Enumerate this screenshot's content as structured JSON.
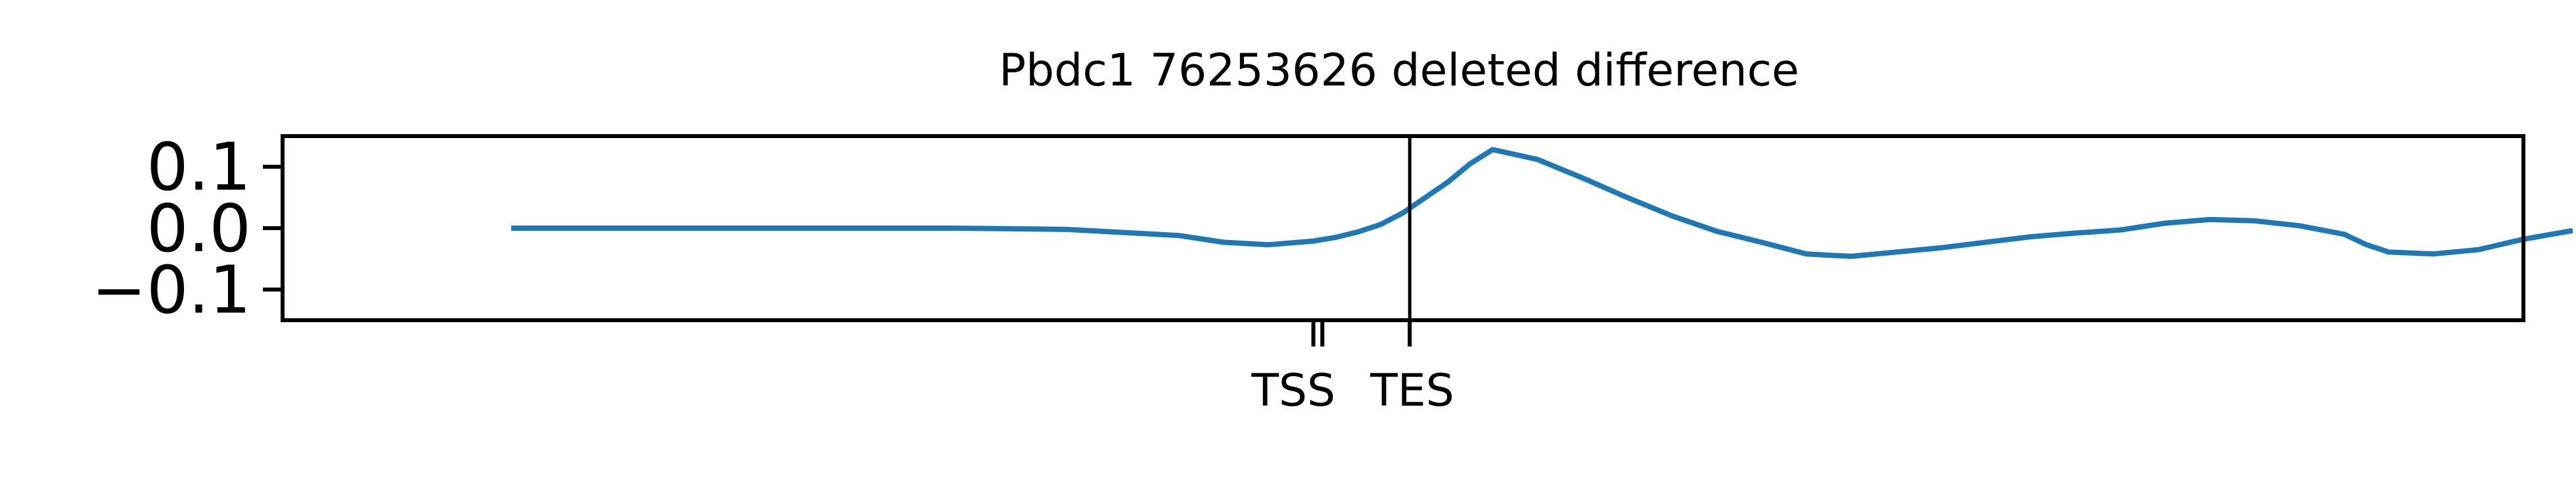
{
  "chart_data": {
    "type": "line",
    "title": "Pbdc1 76253626 deleted difference",
    "xlabel": "",
    "ylabel": "",
    "xlim": [
      0,
      1000
    ],
    "ylim": [
      -0.15,
      0.15
    ],
    "grid": false,
    "legend": "none",
    "yticks": [
      {
        "value": 0.1,
        "label": "0.1"
      },
      {
        "value": 0.0,
        "label": "0.0"
      },
      {
        "value": -0.1,
        "label": "−0.1"
      }
    ],
    "xticks": [
      {
        "value": 460,
        "label": ""
      },
      {
        "value": 464,
        "label": "TSS"
      },
      {
        "value": 503,
        "label": "TES"
      }
    ],
    "vline": {
      "value": 503,
      "color": "#000000"
    },
    "series": [
      {
        "color": "#1f77b4",
        "x": [
          102,
          150,
          200,
          250,
          300,
          350,
          400,
          420,
          440,
          460,
          470,
          480,
          490,
          500,
          510,
          520,
          530,
          540,
          560,
          580,
          600,
          620,
          640,
          660,
          680,
          700,
          740,
          780,
          800,
          820,
          840,
          860,
          880,
          900,
          920,
          930,
          940,
          960,
          980,
          1000,
          1022
        ],
        "y": [
          0.0,
          0.0,
          0.0,
          0.0,
          0.0,
          -0.002,
          -0.012,
          -0.023,
          -0.027,
          -0.021,
          -0.015,
          -0.006,
          0.006,
          0.025,
          0.05,
          0.075,
          0.105,
          0.128,
          0.112,
          0.082,
          0.05,
          0.02,
          -0.005,
          -0.023,
          -0.042,
          -0.046,
          -0.032,
          -0.014,
          -0.008,
          -0.003,
          0.008,
          0.014,
          0.012,
          0.004,
          -0.01,
          -0.027,
          -0.039,
          -0.042,
          -0.035,
          -0.018,
          -0.004
        ]
      }
    ]
  }
}
